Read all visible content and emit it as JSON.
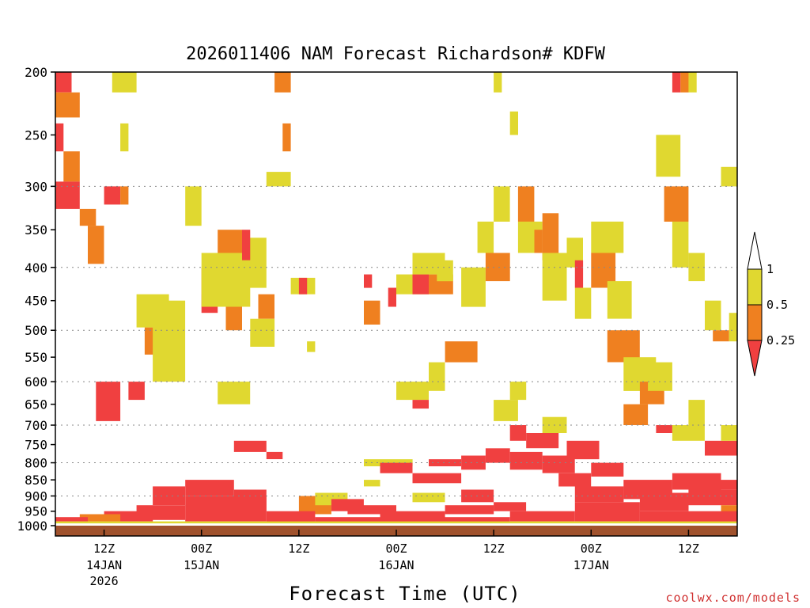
{
  "chart_data": {
    "type": "heatmap",
    "title": "2026011406 NAM Forecast Richardson# KDFW",
    "xlabel": "Forecast Time (UTC)",
    "ylabel": "",
    "y_axis": {
      "type": "pressure",
      "range_hpa": [
        1000,
        200
      ],
      "ticks": [
        "200",
        "250",
        "300",
        "350",
        "400",
        "450",
        "500",
        "550",
        "600",
        "650",
        "700",
        "750",
        "800",
        "850",
        "900",
        "950",
        "1000"
      ]
    },
    "x_axis": {
      "unit": "forecast hour",
      "range": [
        0,
        84
      ],
      "ticks": [
        {
          "hour": 6,
          "label": "12Z",
          "date": "14JAN",
          "year": "2026"
        },
        {
          "hour": 18,
          "label": "00Z",
          "date": "15JAN"
        },
        {
          "hour": 30,
          "label": "12Z"
        },
        {
          "hour": 42,
          "label": "00Z",
          "date": "16JAN"
        },
        {
          "hour": 54,
          "label": "12Z"
        },
        {
          "hour": 66,
          "label": "00Z",
          "date": "17JAN"
        },
        {
          "hour": 78,
          "label": "12Z"
        }
      ]
    },
    "legend": {
      "placement": "right",
      "levels": [
        {
          "label": "1",
          "color": "#ffffff"
        },
        {
          "label": "0.5",
          "color": "#e0d830"
        },
        {
          "label": "0.25",
          "color": "#ef8020"
        },
        {
          "label": "",
          "color": "#f04040"
        }
      ],
      "bins": [
        {
          "range": "0.5 - 1",
          "color": "#e0d830"
        },
        {
          "range": "0.25 - 0.5",
          "color": "#ef8020"
        },
        {
          "range": "< 0.25",
          "color": "#f04040"
        }
      ]
    },
    "ground_color": "#a0522d",
    "cell_hours": 1,
    "note": "Each region: [start hour, end hour, top pressure hPa, bottom pressure hPa, category]. Category 1 = Ri < 0.25 (red), 2 = 0.25-0.5 (orange), 3 = 0.5-1 (yellow).",
    "regions": [
      [
        0,
        2,
        200,
        215,
        1
      ],
      [
        0,
        3,
        215,
        235,
        2
      ],
      [
        0,
        1,
        240,
        265,
        1
      ],
      [
        1,
        3,
        265,
        295,
        2
      ],
      [
        0,
        3,
        295,
        325,
        1
      ],
      [
        3,
        5,
        325,
        345,
        2
      ],
      [
        4,
        6,
        345,
        395,
        2
      ],
      [
        6,
        8,
        300,
        320,
        1
      ],
      [
        8,
        9,
        300,
        320,
        2
      ],
      [
        7,
        10,
        200,
        215,
        3
      ],
      [
        8,
        9,
        240,
        265,
        3
      ],
      [
        5,
        8,
        600,
        690,
        1
      ],
      [
        9,
        11,
        600,
        640,
        1
      ],
      [
        11,
        13,
        495,
        545,
        2
      ],
      [
        10,
        14,
        440,
        495,
        3
      ],
      [
        12,
        16,
        450,
        600,
        3
      ],
      [
        16,
        18,
        300,
        345,
        3
      ],
      [
        18,
        20,
        400,
        440,
        2
      ],
      [
        18,
        20,
        440,
        470,
        1
      ],
      [
        20,
        23,
        350,
        380,
        2
      ],
      [
        21,
        23,
        440,
        500,
        2
      ],
      [
        18,
        24,
        380,
        460,
        3
      ],
      [
        23,
        26,
        360,
        430,
        3
      ],
      [
        23,
        24,
        350,
        390,
        1
      ],
      [
        25,
        27,
        440,
        480,
        2
      ],
      [
        24,
        27,
        480,
        530,
        3
      ],
      [
        20,
        24,
        600,
        650,
        3
      ],
      [
        22,
        26,
        740,
        770,
        1
      ],
      [
        26,
        28,
        770,
        790,
        1
      ],
      [
        27,
        29,
        200,
        215,
        2
      ],
      [
        28,
        29,
        240,
        265,
        2
      ],
      [
        26,
        29,
        285,
        300,
        3
      ],
      [
        29,
        32,
        415,
        440,
        3
      ],
      [
        30,
        31,
        415,
        440,
        1
      ],
      [
        31,
        32,
        520,
        540,
        3
      ],
      [
        38,
        40,
        450,
        490,
        2
      ],
      [
        38,
        39,
        410,
        430,
        1
      ],
      [
        41,
        42,
        430,
        460,
        1
      ],
      [
        42,
        46,
        410,
        440,
        3
      ],
      [
        44,
        46,
        410,
        440,
        1
      ],
      [
        46,
        49,
        410,
        440,
        2
      ],
      [
        44,
        48,
        380,
        410,
        3
      ],
      [
        47,
        49,
        390,
        420,
        3
      ],
      [
        42,
        46,
        600,
        640,
        3
      ],
      [
        44,
        46,
        640,
        660,
        1
      ],
      [
        46,
        48,
        560,
        620,
        3
      ],
      [
        48,
        52,
        520,
        560,
        2
      ],
      [
        50,
        53,
        400,
        460,
        3
      ],
      [
        53,
        56,
        380,
        420,
        2
      ],
      [
        52,
        54,
        340,
        380,
        3
      ],
      [
        54,
        56,
        300,
        340,
        3
      ],
      [
        54,
        55,
        200,
        215,
        3
      ],
      [
        56,
        57,
        230,
        250,
        3
      ],
      [
        57,
        59,
        300,
        340,
        2
      ],
      [
        57,
        60,
        340,
        380,
        3
      ],
      [
        59,
        60,
        350,
        380,
        2
      ],
      [
        60,
        62,
        330,
        390,
        2
      ],
      [
        60,
        63,
        380,
        450,
        3
      ],
      [
        63,
        65,
        360,
        400,
        3
      ],
      [
        64,
        65,
        390,
        430,
        1
      ],
      [
        64,
        66,
        430,
        480,
        3
      ],
      [
        66,
        69,
        380,
        430,
        2
      ],
      [
        66,
        70,
        340,
        380,
        3
      ],
      [
        68,
        71,
        420,
        480,
        3
      ],
      [
        68,
        72,
        500,
        560,
        2
      ],
      [
        70,
        74,
        550,
        620,
        3
      ],
      [
        72,
        75,
        600,
        650,
        2
      ],
      [
        73,
        76,
        560,
        620,
        3
      ],
      [
        75,
        78,
        300,
        340,
        2
      ],
      [
        74,
        77,
        250,
        290,
        3
      ],
      [
        76,
        78,
        340,
        400,
        3
      ],
      [
        77,
        78,
        200,
        215,
        2
      ],
      [
        76,
        77,
        200,
        215,
        1
      ],
      [
        78,
        79,
        200,
        215,
        3
      ],
      [
        78,
        80,
        380,
        420,
        3
      ],
      [
        80,
        82,
        450,
        500,
        3
      ],
      [
        81,
        83,
        500,
        520,
        2
      ],
      [
        83,
        84,
        470,
        520,
        3
      ],
      [
        82,
        84,
        280,
        300,
        3
      ],
      [
        50,
        53,
        780,
        820,
        1
      ],
      [
        53,
        56,
        760,
        800,
        1
      ],
      [
        56,
        60,
        770,
        820,
        1
      ],
      [
        60,
        64,
        780,
        830,
        1
      ],
      [
        63,
        67,
        740,
        790,
        1
      ],
      [
        62,
        66,
        830,
        870,
        1
      ],
      [
        66,
        70,
        800,
        840,
        1
      ],
      [
        64,
        70,
        870,
        920,
        1
      ],
      [
        70,
        76,
        850,
        910,
        1
      ],
      [
        72,
        78,
        890,
        950,
        1
      ],
      [
        76,
        82,
        830,
        880,
        1
      ],
      [
        80,
        84,
        850,
        880,
        1
      ],
      [
        78,
        84,
        880,
        930,
        1
      ],
      [
        82,
        84,
        930,
        960,
        2
      ],
      [
        80,
        84,
        960,
        990,
        1
      ],
      [
        74,
        76,
        700,
        720,
        1
      ],
      [
        70,
        73,
        650,
        700,
        2
      ],
      [
        76,
        80,
        700,
        740,
        3
      ],
      [
        80,
        84,
        740,
        780,
        1
      ],
      [
        82,
        84,
        700,
        740,
        3
      ],
      [
        78,
        80,
        640,
        700,
        3
      ],
      [
        54,
        57,
        640,
        690,
        3
      ],
      [
        56,
        58,
        700,
        740,
        1
      ],
      [
        58,
        62,
        720,
        760,
        1
      ],
      [
        60,
        63,
        680,
        720,
        3
      ],
      [
        56,
        58,
        600,
        640,
        3
      ],
      [
        38,
        44,
        790,
        810,
        3
      ],
      [
        40,
        44,
        800,
        830,
        1
      ],
      [
        46,
        50,
        790,
        810,
        1
      ],
      [
        44,
        50,
        830,
        860,
        1
      ],
      [
        38,
        40,
        850,
        870,
        3
      ],
      [
        30,
        34,
        900,
        960,
        2
      ],
      [
        32,
        36,
        890,
        930,
        3
      ],
      [
        34,
        38,
        910,
        950,
        1
      ],
      [
        36,
        42,
        930,
        960,
        1
      ],
      [
        42,
        48,
        950,
        975,
        1
      ],
      [
        48,
        54,
        930,
        960,
        1
      ],
      [
        54,
        58,
        920,
        950,
        1
      ],
      [
        50,
        54,
        880,
        920,
        1
      ],
      [
        44,
        48,
        890,
        920,
        3
      ],
      [
        12,
        16,
        870,
        930,
        1
      ],
      [
        16,
        22,
        850,
        900,
        1
      ],
      [
        22,
        26,
        880,
        950,
        1
      ],
      [
        10,
        16,
        930,
        980,
        1
      ],
      [
        16,
        26,
        900,
        985,
        1
      ],
      [
        26,
        32,
        950,
        990,
        1
      ],
      [
        6,
        12,
        950,
        985,
        1
      ],
      [
        3,
        8,
        960,
        985,
        2
      ],
      [
        0,
        4,
        970,
        985,
        1
      ],
      [
        32,
        40,
        970,
        990,
        1
      ],
      [
        40,
        46,
        960,
        990,
        1
      ],
      [
        46,
        56,
        970,
        990,
        1
      ],
      [
        56,
        64,
        950,
        985,
        1
      ],
      [
        64,
        72,
        920,
        985,
        1
      ],
      [
        72,
        84,
        950,
        990,
        1
      ],
      [
        0,
        84,
        985,
        992,
        3
      ]
    ]
  }
}
